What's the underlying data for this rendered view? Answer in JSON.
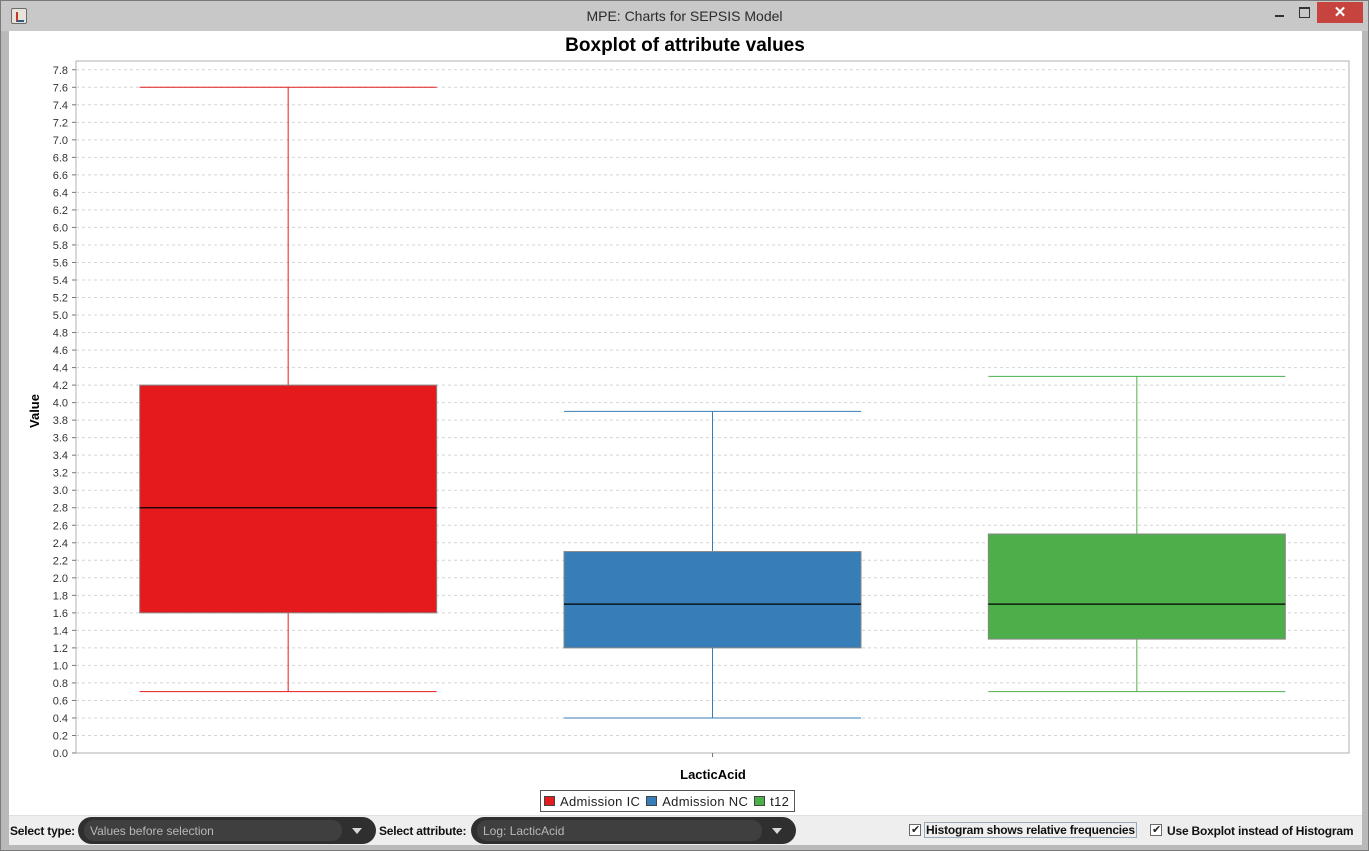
{
  "window": {
    "title": "MPE: Charts for SEPSIS Model",
    "close_glyph": "✕"
  },
  "chart_data": {
    "type": "boxplot",
    "title": "Boxplot of attribute values",
    "xlabel": "LacticAcid",
    "ylabel": "Value",
    "ylim": [
      0.0,
      7.8
    ],
    "ytick_step": 0.2,
    "grid": true,
    "legend_placement": "bottom-center",
    "category": "LacticAcid",
    "series": [
      {
        "name": "Admission IC",
        "color": "#e41a1c",
        "min": 0.7,
        "q1": 1.6,
        "median": 2.8,
        "q3": 4.2,
        "max": 7.6
      },
      {
        "name": "Admission NC",
        "color": "#377eb8",
        "min": 0.4,
        "q1": 1.2,
        "median": 1.7,
        "q3": 2.3,
        "max": 3.9
      },
      {
        "name": "t12",
        "color": "#4daf4a",
        "min": 0.7,
        "q1": 1.3,
        "median": 1.7,
        "q3": 2.5,
        "max": 4.3
      }
    ]
  },
  "controls": {
    "select_type_label": "Select type:",
    "select_type_value": "Values before selection",
    "select_attribute_label": "Select attribute:",
    "select_attribute_value": "Log: LacticAcid",
    "histogram_relative_label": "Histogram shows relative frequencies",
    "histogram_relative_checked": true,
    "use_boxplot_label": "Use Boxplot instead of Histogram",
    "use_boxplot_checked": true,
    "check_glyph": "✔"
  }
}
